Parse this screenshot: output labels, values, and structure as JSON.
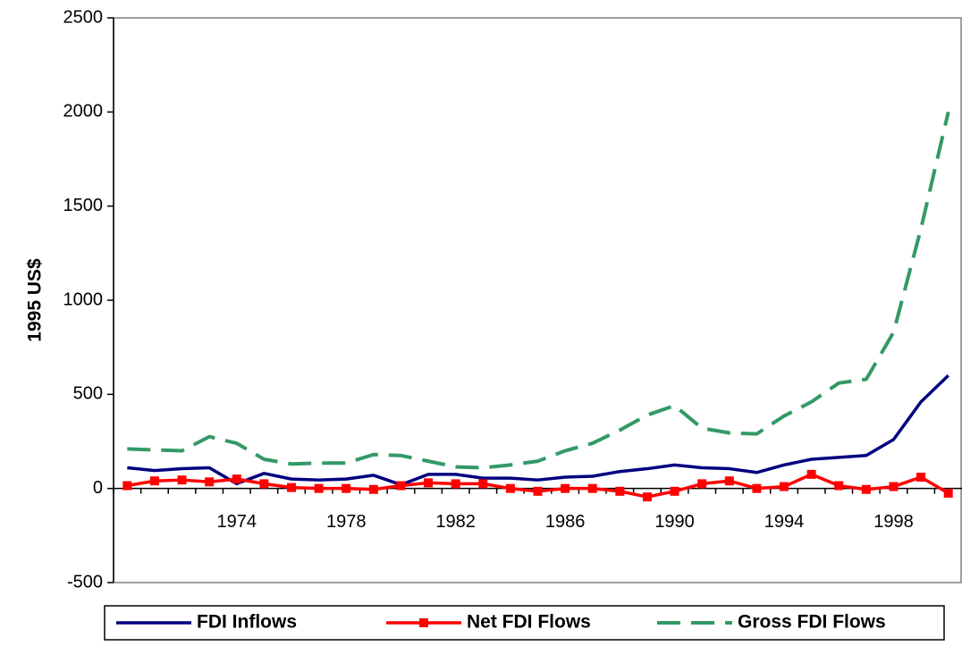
{
  "chart_data": {
    "type": "line",
    "y_label": "1995 US$",
    "categories": [
      null,
      null,
      null,
      null,
      "1974",
      null,
      null,
      null,
      "1978",
      null,
      null,
      null,
      "1982",
      null,
      null,
      null,
      "1986",
      null,
      null,
      null,
      "1990",
      null,
      null,
      null,
      "1994",
      null,
      null,
      null,
      "1998",
      null,
      null
    ],
    "series": [
      {
        "name": "FDI Inflows",
        "color": "#000080",
        "dash": "solid",
        "marker": "none",
        "values": [
          110,
          95,
          105,
          110,
          25,
          80,
          50,
          45,
          50,
          70,
          20,
          75,
          75,
          55,
          55,
          45,
          60,
          65,
          90,
          105,
          125,
          110,
          105,
          85,
          125,
          155,
          165,
          175,
          260,
          460,
          600
        ]
      },
      {
        "name": "Net FDI Flows",
        "color": "#ff0000",
        "dash": "solid",
        "marker": "square",
        "values": [
          15,
          40,
          45,
          35,
          50,
          25,
          5,
          0,
          0,
          -5,
          15,
          30,
          25,
          25,
          0,
          -15,
          0,
          0,
          -15,
          -45,
          -15,
          25,
          40,
          0,
          10,
          75,
          15,
          -5,
          10,
          60,
          -25
        ]
      },
      {
        "name": "Gross FDI Flows",
        "color": "#339966",
        "dash": "dashed",
        "marker": "none",
        "values": [
          210,
          205,
          200,
          275,
          240,
          155,
          130,
          135,
          135,
          180,
          175,
          145,
          115,
          110,
          125,
          145,
          200,
          240,
          310,
          390,
          440,
          320,
          295,
          290,
          385,
          460,
          560,
          580,
          830,
          1380,
          2000
        ]
      }
    ],
    "ylim": [
      -500,
      2500
    ],
    "yticks": [
      -500,
      0,
      500,
      1000,
      1500,
      2000,
      2500
    ],
    "grid": false,
    "legend": "bottom"
  }
}
